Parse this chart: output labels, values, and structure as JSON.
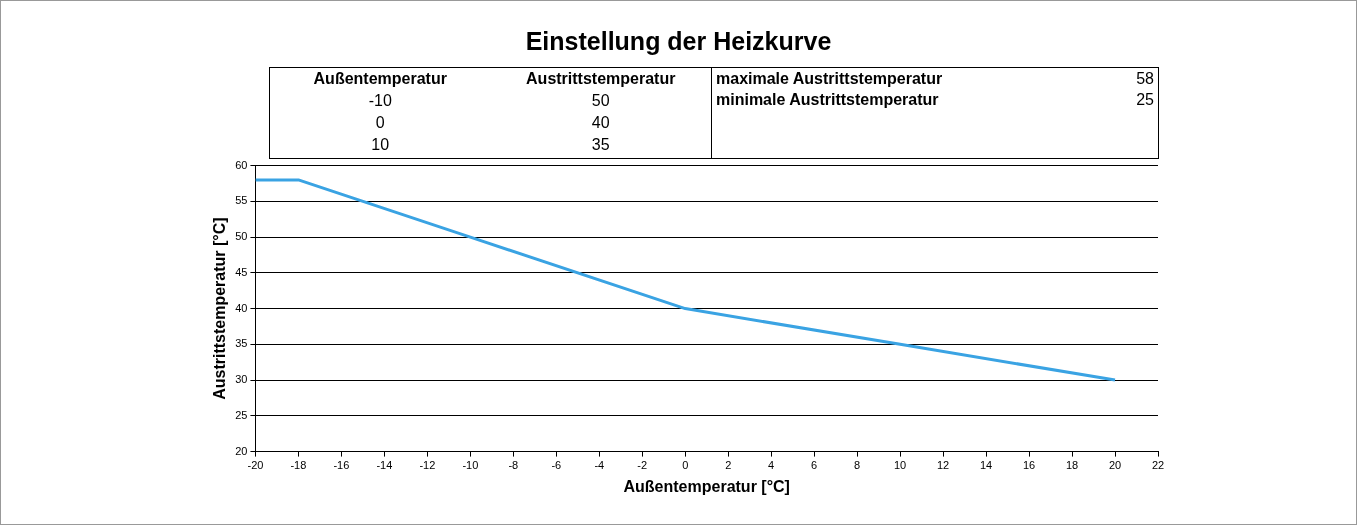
{
  "chart_data": {
    "type": "line",
    "title": "Einstellung der Heizkurve",
    "xlabel": "Außentemperatur [°C]",
    "ylabel": "Austrittstemperatur [°C]",
    "annotations": [
      "Außentemperatur",
      "Austrittstemperatur",
      "-10",
      "50",
      "0",
      "40",
      "10",
      "35",
      "maximale Austrittstemperatur",
      "58",
      "minimale Austrittstemperatur",
      "25"
    ],
    "x": [
      -20,
      -18,
      -10,
      0,
      10,
      20
    ],
    "series": [
      {
        "color": "#3aa3e3",
        "values": [
          58,
          58,
          50,
          40,
          35,
          30
        ]
      }
    ],
    "xlim": [
      -20,
      22
    ],
    "xticks": [
      -20,
      -18,
      -16,
      -14,
      -12,
      -10,
      -8,
      -6,
      -4,
      -2,
      0,
      2,
      4,
      6,
      8,
      10,
      12,
      14,
      16,
      18,
      20,
      22
    ],
    "ylim": [
      20,
      60
    ],
    "yticks": [
      20,
      25,
      30,
      35,
      40,
      45,
      50,
      55,
      60
    ],
    "grid": "y",
    "legend": false,
    "marker": "none",
    "line_style": "solid"
  }
}
